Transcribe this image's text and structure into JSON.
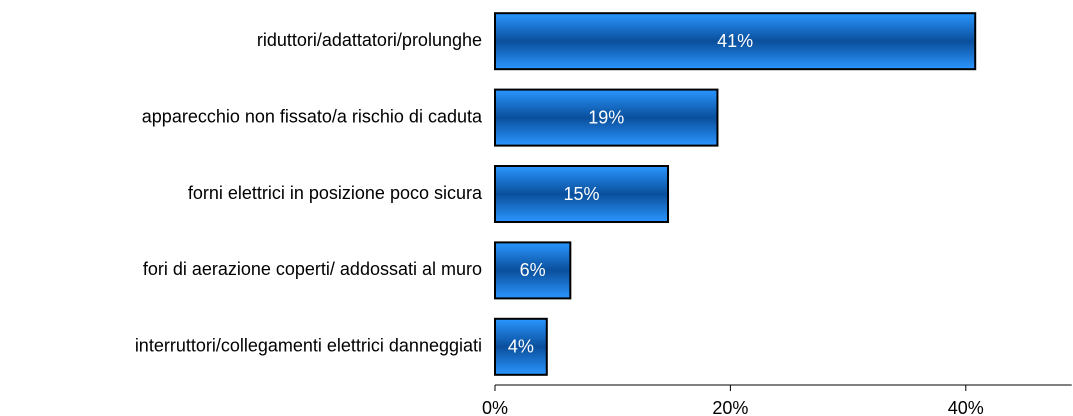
{
  "chart_data": {
    "type": "bar",
    "orientation": "horizontal",
    "categories": [
      "riduttori/adattatori/prolunghe",
      "apparecchio non fissato/a rischio di caduta",
      "forni elettrici in posizione poco sicura",
      "fori di aerazione coperti/ addossati al muro",
      "interruttori/collegamenti elettrici danneggiati"
    ],
    "values": [
      40.8,
      18.9,
      14.7,
      6.4,
      4.4
    ],
    "value_labels": [
      "41%",
      "19%",
      "15%",
      "6%",
      "4%"
    ],
    "color": "#1a7de0",
    "xlim": [
      0,
      49
    ],
    "xticks": [
      {
        "value": 0,
        "label": "0%"
      },
      {
        "value": 20,
        "label": "20%"
      },
      {
        "value": 40,
        "label": "40%"
      }
    ],
    "grid": false
  }
}
